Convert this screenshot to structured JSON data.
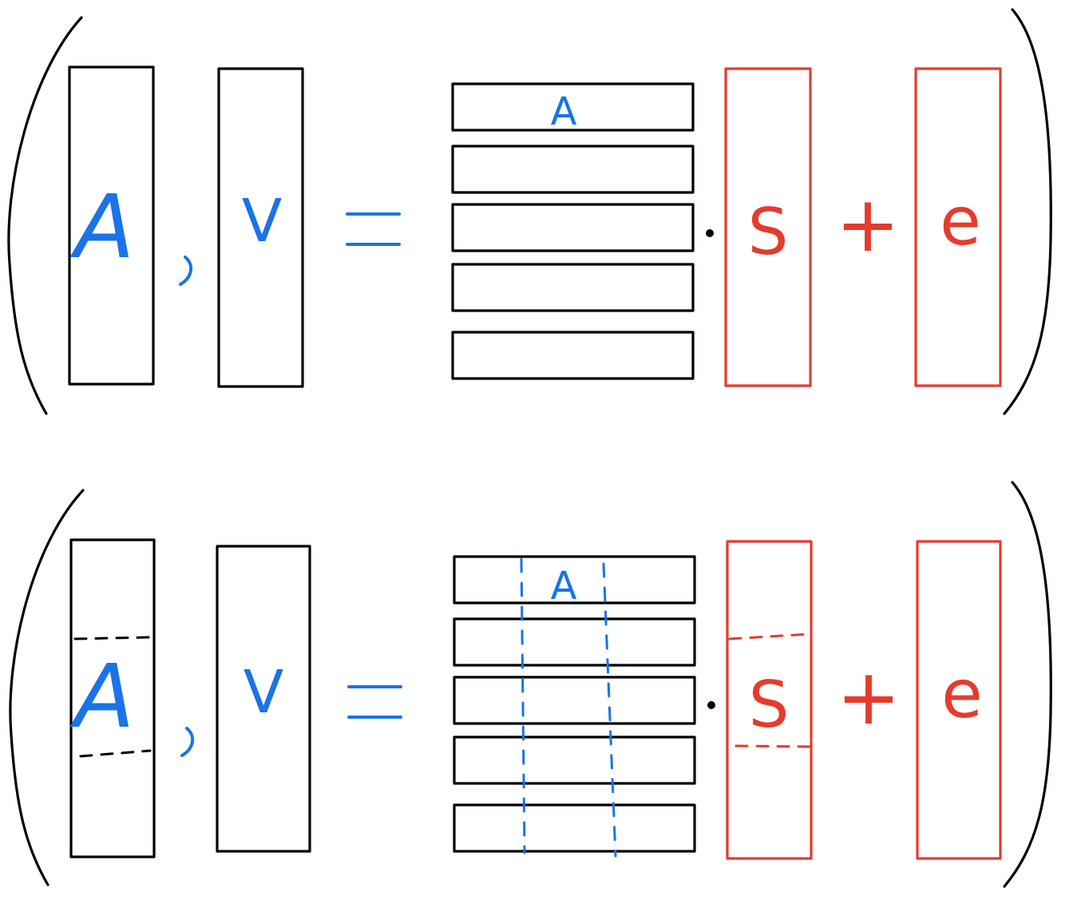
{
  "top_equation": {
    "matrix_A_label": "A",
    "vector_v_label": "V",
    "equals_sign": "=",
    "row_label": "A",
    "secret_label": "S",
    "plus_sign": "+",
    "error_label": "e"
  },
  "bottom_equation": {
    "matrix_A_label": "A",
    "vector_v_label": "V",
    "equals_sign": "=",
    "row_label": "A",
    "secret_label": "S",
    "plus_sign": "+",
    "error_label": "e"
  },
  "colors": {
    "ink": "#000000",
    "blue": "#1a73e8",
    "red": "#e53b2c"
  }
}
